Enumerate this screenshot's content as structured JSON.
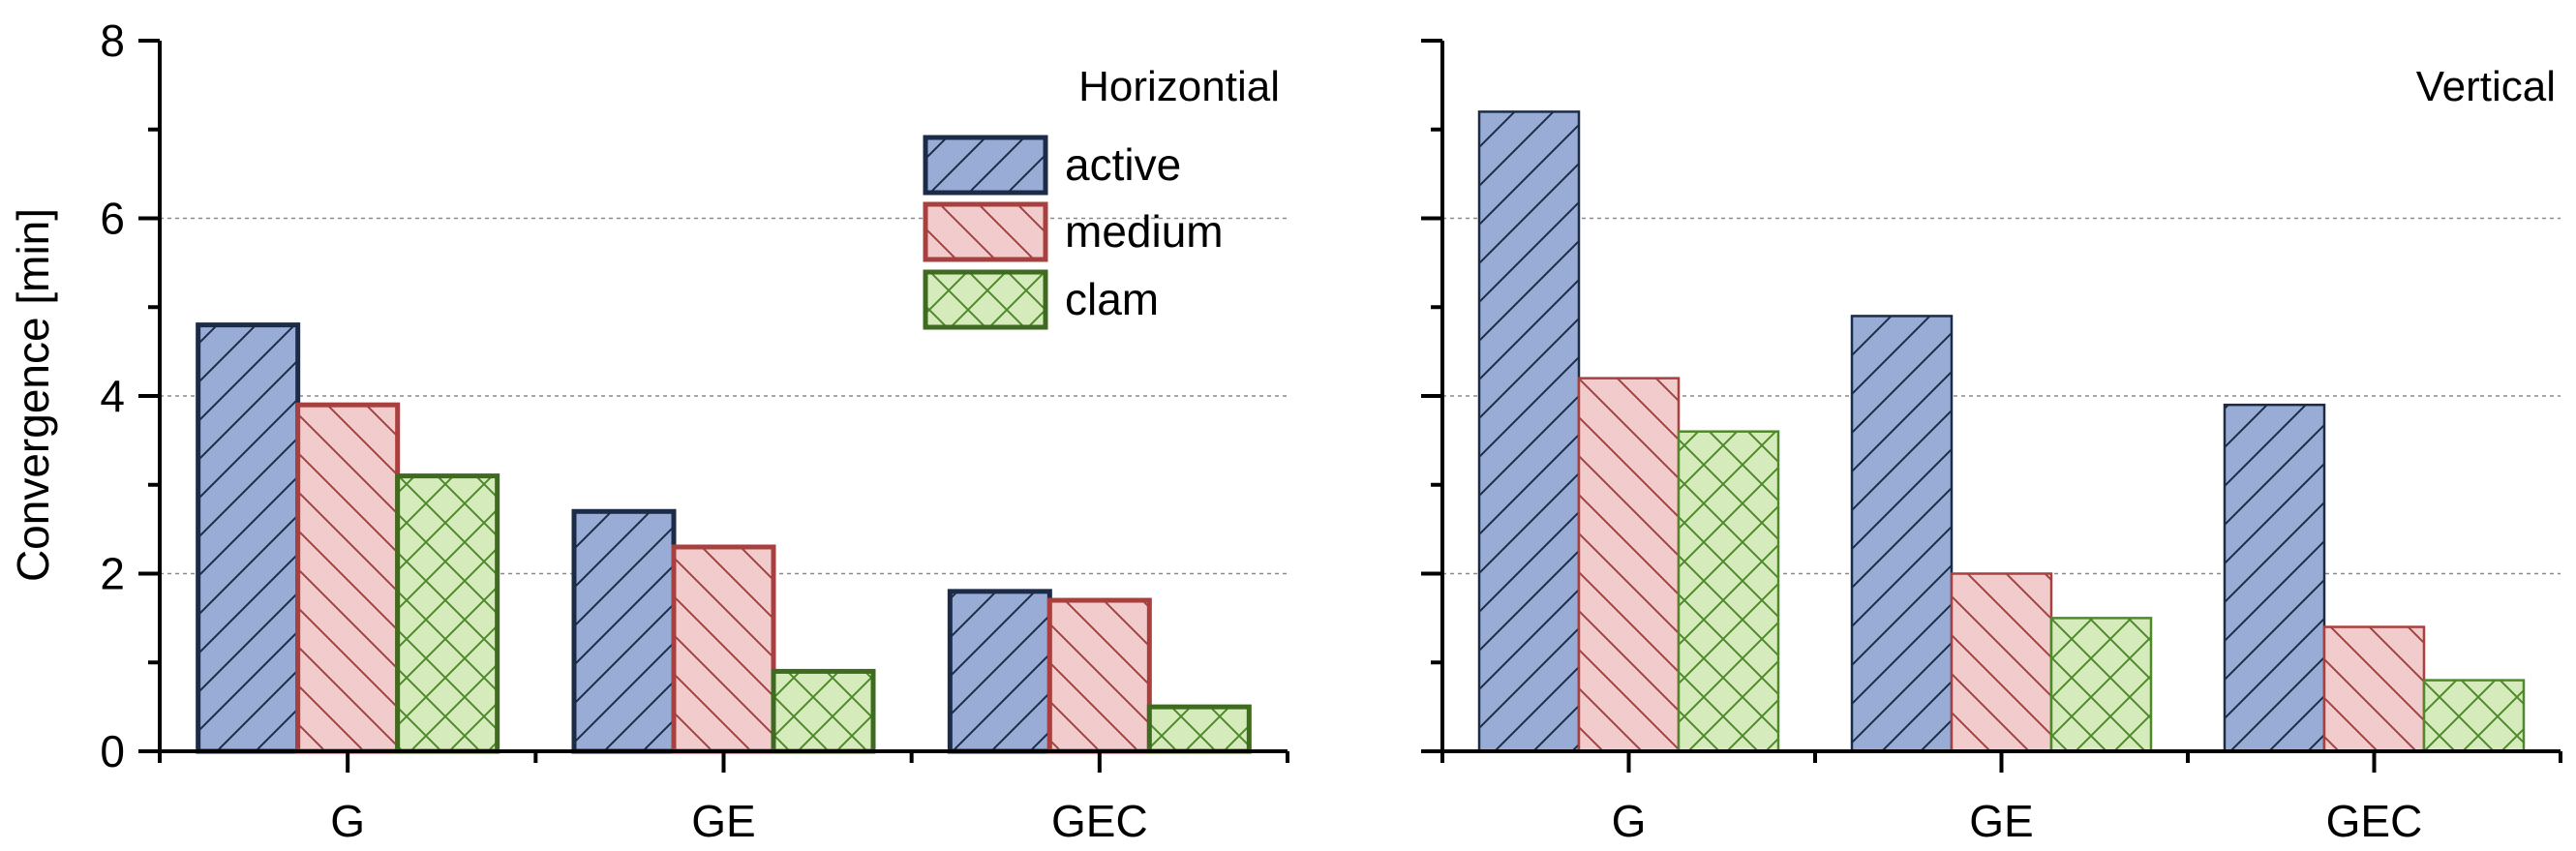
{
  "chart_data": [
    {
      "type": "bar",
      "panel": "left",
      "title": "Horizontial",
      "categories": [
        "G",
        "GE",
        "GEC"
      ],
      "series": [
        {
          "name": "active",
          "values": [
            4.8,
            2.7,
            1.8
          ]
        },
        {
          "name": "medium",
          "values": [
            3.9,
            2.3,
            1.7
          ]
        },
        {
          "name": "clam",
          "values": [
            3.1,
            0.9,
            0.5
          ]
        }
      ],
      "ylabel": "Convergence [min]",
      "ylim": [
        0,
        8
      ],
      "yticks": [
        "0",
        "2",
        "4",
        "6",
        "8"
      ],
      "grid": true,
      "legend_position": "top-right"
    },
    {
      "type": "bar",
      "panel": "right",
      "title": "Vertical",
      "categories": [
        "G",
        "GE",
        "GEC"
      ],
      "series": [
        {
          "name": "active",
          "values": [
            7.2,
            4.9,
            3.9
          ]
        },
        {
          "name": "medium",
          "values": [
            4.2,
            2.0,
            1.4
          ]
        },
        {
          "name": "clam",
          "values": [
            3.6,
            1.5,
            0.8
          ]
        }
      ],
      "ylim": [
        0,
        8
      ],
      "grid": true
    }
  ],
  "colors": {
    "active_fill": "#98acd6",
    "active_stroke": "#1c2c48",
    "medium_fill": "#f2cccc",
    "medium_stroke": "#a8403f",
    "clam_fill": "#d6ebbb",
    "clam_stroke": "#4f8a2a",
    "clam_stroke_left": "#3e6b1f"
  }
}
